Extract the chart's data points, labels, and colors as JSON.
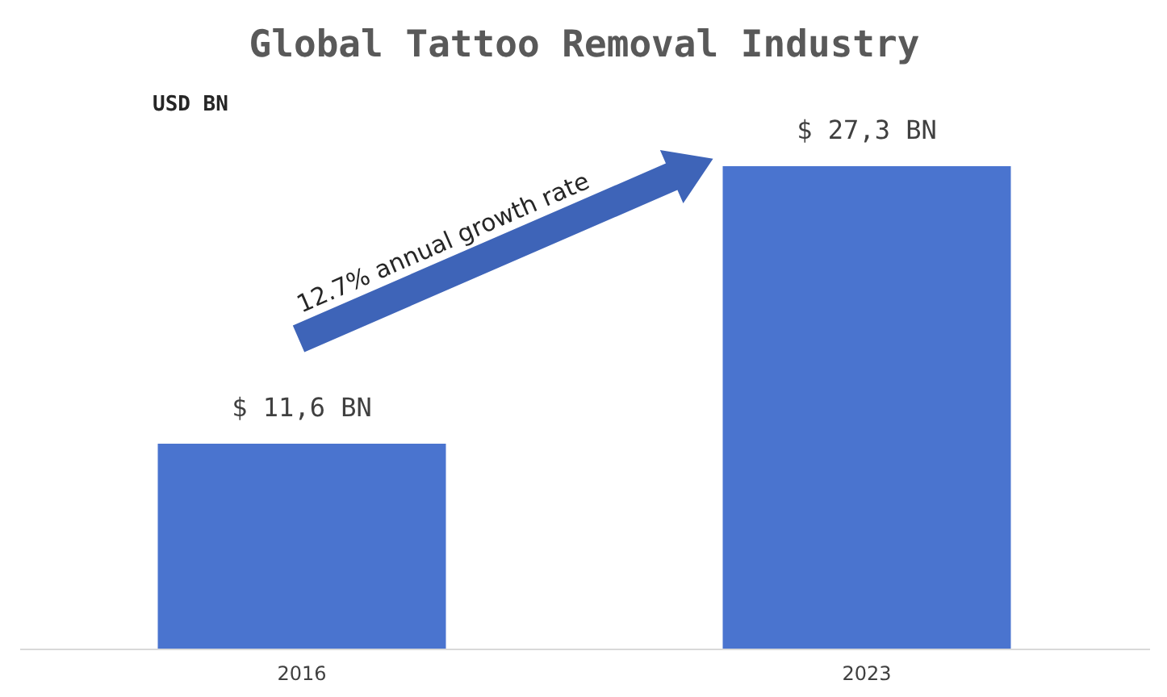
{
  "chart_data": {
    "type": "bar",
    "title": "Global Tattoo Removal Industry",
    "ylabel": "USD BN",
    "categories": [
      "2016",
      "2023"
    ],
    "values": [
      11.6,
      27.3
    ],
    "color": "#4a74cf",
    "value_labels": [
      "$ 11,6 BN",
      "$ 27,3 BN"
    ],
    "annotations": [
      "12.7% annual growth rate"
    ]
  }
}
